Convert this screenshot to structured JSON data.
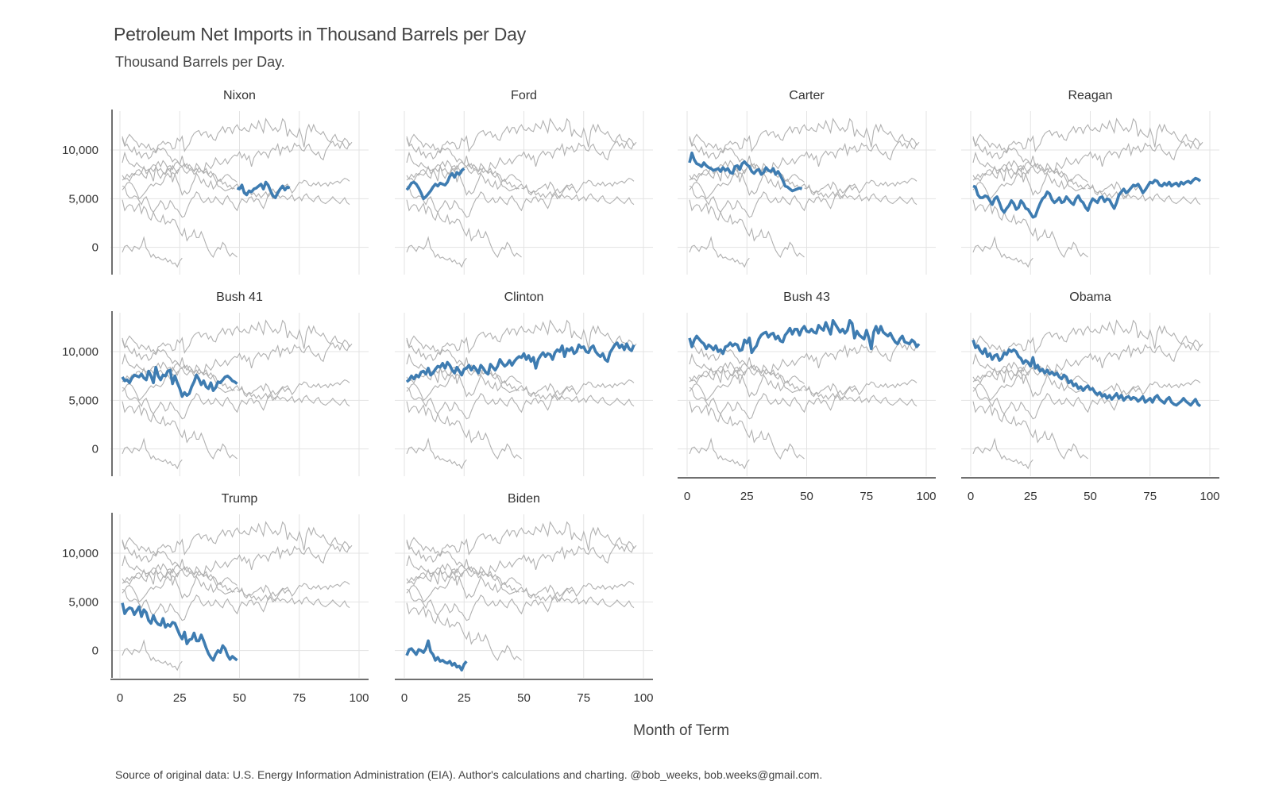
{
  "title": "Petroleum Net Imports in Thousand Barrels per Day",
  "subtitle": "Thousand Barrels per Day.",
  "x_axis_title": "Month of Term",
  "source_note": "Source of original data: U.S. Energy Information Administration (EIA). Author's calculations and charting. @bob_weeks, bob.weeks@gmail.com.",
  "colors": {
    "highlight": "#3e7cb1",
    "background_series": "#b0b0b0",
    "grid": "#e3e3e3",
    "axis": "#707070"
  },
  "chart_data": {
    "type": "line",
    "layout": "small-multiples, 4 columns, highlighted series per panel, all other series in grey",
    "x": {
      "min": 0,
      "max": 100,
      "ticks": [
        0,
        25,
        50,
        75,
        100
      ],
      "tick_labels": [
        "0",
        "25",
        "50",
        "75",
        "100"
      ]
    },
    "y": {
      "min": -2800,
      "max": 14000,
      "ticks": [
        0,
        5000,
        10000
      ],
      "tick_labels": [
        "0",
        "5,000",
        "10,000"
      ]
    },
    "grid": true,
    "panels": [
      "Nixon",
      "Ford",
      "Carter",
      "Reagan",
      "Bush 41",
      "Clinton",
      "Bush 43",
      "Obama",
      "Trump",
      "Biden"
    ],
    "series": [
      {
        "name": "Nixon",
        "x_start": 49,
        "values": [
          6100,
          6000,
          6400,
          5600,
          5400,
          5800,
          5700,
          6000,
          6100,
          6300,
          6500,
          6000,
          6700,
          6400,
          5800,
          5300,
          5100,
          5600,
          6000,
          6300,
          5900,
          6200,
          6100
        ]
      },
      {
        "name": "Ford",
        "x_start": 1,
        "values": [
          5900,
          6200,
          6600,
          6700,
          6500,
          6100,
          5600,
          5000,
          5200,
          5500,
          5800,
          6200,
          6500,
          6300,
          6600,
          6500,
          6400,
          6700,
          7300,
          7600,
          7200,
          7700,
          7500,
          7900,
          8100
        ]
      },
      {
        "name": "Carter",
        "x_start": 1,
        "values": [
          8700,
          9700,
          9000,
          8600,
          8500,
          8300,
          8700,
          8400,
          8200,
          8100,
          7900,
          8000,
          8100,
          7800,
          8200,
          7900,
          8100,
          7700,
          7600,
          8300,
          8400,
          8000,
          8600,
          8800,
          8500,
          8300,
          7800,
          7600,
          7900,
          8000,
          7500,
          7700,
          8200,
          7900,
          7800,
          8100,
          7500,
          7800,
          7400,
          6900,
          6300,
          6200,
          6000,
          5800,
          5900,
          6000,
          6100,
          6000
        ]
      },
      {
        "name": "Reagan",
        "x_start": 1,
        "values": [
          6300,
          6200,
          5400,
          5100,
          5100,
          5300,
          5200,
          4800,
          4400,
          5000,
          5200,
          4600,
          3900,
          3600,
          4000,
          4300,
          4800,
          4500,
          3900,
          4100,
          4800,
          4500,
          4000,
          3900,
          3500,
          3100,
          3200,
          3900,
          4500,
          5000,
          5200,
          5700,
          5500,
          4900,
          4600,
          4800,
          5100,
          4600,
          4700,
          5200,
          4900,
          4600,
          4400,
          5000,
          5300,
          4800,
          4600,
          4100,
          3800,
          4500,
          5000,
          4800,
          4600,
          5100,
          5200,
          4700,
          5000,
          4900,
          4400,
          4000,
          4600,
          5400,
          5700,
          6000,
          5600,
          5800,
          6100,
          6400,
          6300,
          6500,
          6100,
          5600,
          5900,
          6300,
          6700,
          6600,
          6900,
          6800,
          6400,
          6300,
          6600,
          6400,
          6700,
          6300,
          6500,
          6600,
          6300,
          6700,
          6500,
          6700,
          6800,
          6600,
          6900,
          7100,
          7000,
          6800
        ]
      },
      {
        "name": "Bush 41",
        "x_start": 1,
        "values": [
          7400,
          7000,
          7100,
          6800,
          7300,
          7600,
          7500,
          7400,
          7700,
          7300,
          7100,
          8000,
          7500,
          6800,
          8400,
          7500,
          7100,
          7600,
          7500,
          8000,
          8100,
          6700,
          7500,
          6800,
          6200,
          5400,
          5800,
          5500,
          5700,
          6400,
          6900,
          7600,
          7200,
          6600,
          7000,
          6400,
          6200,
          6800,
          6000,
          6300,
          6900,
          6800,
          7100,
          7400,
          7500,
          7300,
          7000,
          6900,
          6700
        ]
      },
      {
        "name": "Clinton",
        "x_start": 1,
        "values": [
          6900,
          7100,
          7500,
          7200,
          7600,
          7400,
          7900,
          8000,
          7700,
          8300,
          7600,
          7800,
          8200,
          8500,
          8400,
          8800,
          8300,
          8900,
          8600,
          8100,
          7800,
          8400,
          8000,
          7600,
          8200,
          8300,
          8600,
          8100,
          8500,
          8200,
          7800,
          8600,
          8300,
          7900,
          7700,
          8700,
          8400,
          8100,
          8500,
          9200,
          8800,
          8500,
          8700,
          9100,
          8600,
          9000,
          9300,
          9500,
          9400,
          9800,
          9200,
          9600,
          9000,
          9400,
          8300,
          9200,
          9600,
          9900,
          9500,
          9800,
          9700,
          9200,
          9900,
          10200,
          10000,
          10600,
          9500,
          10300,
          10100,
          10400,
          9800,
          10000,
          10700,
          10400,
          10500,
          10000,
          9900,
          10400,
          10600,
          10000,
          9700,
          9500,
          9800,
          9200,
          9000,
          9900,
          10300,
          10700,
          10900,
          10400,
          10700,
          10200,
          10800,
          10300,
          10100,
          10700
        ]
      },
      {
        "name": "Bush 43",
        "x_start": 1,
        "values": [
          11400,
          10500,
          11200,
          11600,
          11300,
          11000,
          10800,
          10300,
          10700,
          10500,
          10200,
          10600,
          10000,
          10200,
          9800,
          10500,
          10600,
          10900,
          10600,
          10800,
          10700,
          10100,
          10200,
          11200,
          10900,
          11400,
          9900,
          10300,
          10600,
          11300,
          11700,
          11900,
          12000,
          11500,
          11800,
          11900,
          11300,
          11600,
          11100,
          11000,
          11700,
          12000,
          12400,
          11800,
          12300,
          12300,
          11700,
          12300,
          12600,
          12100,
          12000,
          12300,
          12000,
          11900,
          12700,
          12400,
          12200,
          13000,
          12400,
          11800,
          13200,
          12800,
          12400,
          12000,
          12300,
          11900,
          12200,
          13200,
          12900,
          11400,
          12100,
          11700,
          11500,
          11300,
          12200,
          11400,
          10300,
          12000,
          12600,
          11900,
          12600,
          12000,
          11800,
          11600,
          11900,
          11400,
          11000,
          10800,
          11300,
          11600,
          11000,
          10900,
          10800,
          11200,
          11000,
          10500,
          10800
        ]
      },
      {
        "name": "Obama",
        "x_start": 1,
        "values": [
          11200,
          10400,
          10600,
          10100,
          9800,
          10300,
          9500,
          9800,
          9200,
          9600,
          9700,
          9100,
          9300,
          9900,
          9700,
          10200,
          10000,
          10200,
          10000,
          9500,
          9300,
          8800,
          9100,
          8900,
          8500,
          9400,
          8300,
          8600,
          8000,
          8200,
          7800,
          8100,
          7700,
          7900,
          7600,
          7800,
          7400,
          7200,
          7600,
          7400,
          6800,
          7000,
          6500,
          6700,
          6200,
          6400,
          6000,
          6300,
          6500,
          6100,
          6200,
          5800,
          5600,
          5800,
          5400,
          5600,
          5200,
          5500,
          5100,
          5400,
          5700,
          5200,
          5500,
          5000,
          5300,
          5400,
          5100,
          5300,
          5200,
          4900,
          5100,
          5400,
          4800,
          5000,
          5200,
          4800,
          5300,
          5500,
          5100,
          4900,
          4700,
          5100,
          5300,
          4800,
          4600,
          4500,
          4700,
          4900,
          5200,
          4900,
          4700,
          4500,
          4800,
          5100,
          4600,
          4400
        ]
      },
      {
        "name": "Trump",
        "x_start": 1,
        "values": [
          4900,
          3800,
          4200,
          4400,
          4300,
          3700,
          4100,
          4500,
          3500,
          4200,
          3900,
          3100,
          2800,
          3600,
          3000,
          2700,
          2600,
          3300,
          2400,
          2700,
          2500,
          2900,
          2800,
          2200,
          1600,
          1200,
          1900,
          700,
          1100,
          1200,
          1800,
          1000,
          1000,
          1600,
          1000,
          300,
          -300,
          -700,
          -1000,
          -400,
          0,
          -200,
          500,
          200,
          -500,
          -900,
          -600,
          -800,
          -1000
        ]
      },
      {
        "name": "Biden",
        "x_start": 1,
        "values": [
          -500,
          100,
          200,
          -100,
          -400,
          100,
          0,
          -200,
          200,
          1000,
          -100,
          -400,
          -1000,
          -700,
          -1100,
          -1000,
          -1200,
          -1300,
          -1100,
          -1500,
          -1300,
          -1700,
          -1600,
          -2000,
          -1400,
          -1100
        ]
      }
    ]
  }
}
